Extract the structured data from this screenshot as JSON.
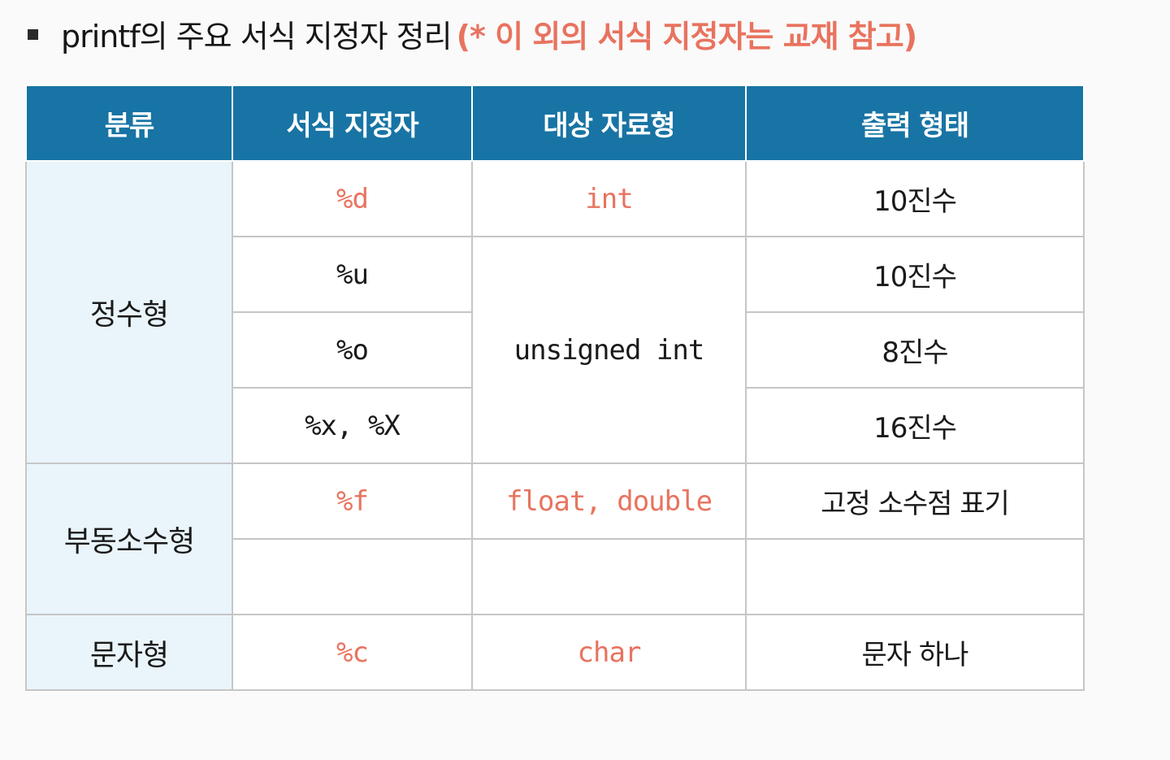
{
  "heading": {
    "title": "printf의 주요 서식 지정자 정리",
    "note": "(* 이 외의 서식 지정자는 교재 참고)"
  },
  "table": {
    "headers": [
      "분류",
      "서식 지정자",
      "대상 자료형",
      "출력 형태"
    ],
    "categories": {
      "integer": "정수형",
      "float": "부동소수형",
      "char": "문자형"
    },
    "rows": [
      {
        "spec": "%d",
        "type": "int",
        "output": "10진수",
        "highlight": true
      },
      {
        "spec": "%u",
        "type": "unsigned int",
        "output": "10진수",
        "highlight": false
      },
      {
        "spec": "%o",
        "type": "",
        "output": "8진수",
        "highlight": false
      },
      {
        "spec": "%x, %X",
        "type": "",
        "output": "16진수",
        "highlight": false
      },
      {
        "spec": "%f",
        "type": "float, double",
        "output": "고정 소수점 표기",
        "highlight": true
      },
      {
        "spec": "",
        "type": "",
        "output": "",
        "highlight": false
      },
      {
        "spec": "%c",
        "type": "char",
        "output": "문자 하나",
        "highlight": true
      }
    ]
  },
  "colors": {
    "header_bg": "#1874a4",
    "category_bg": "#eaf5fb",
    "highlight_text": "#e8735f"
  }
}
